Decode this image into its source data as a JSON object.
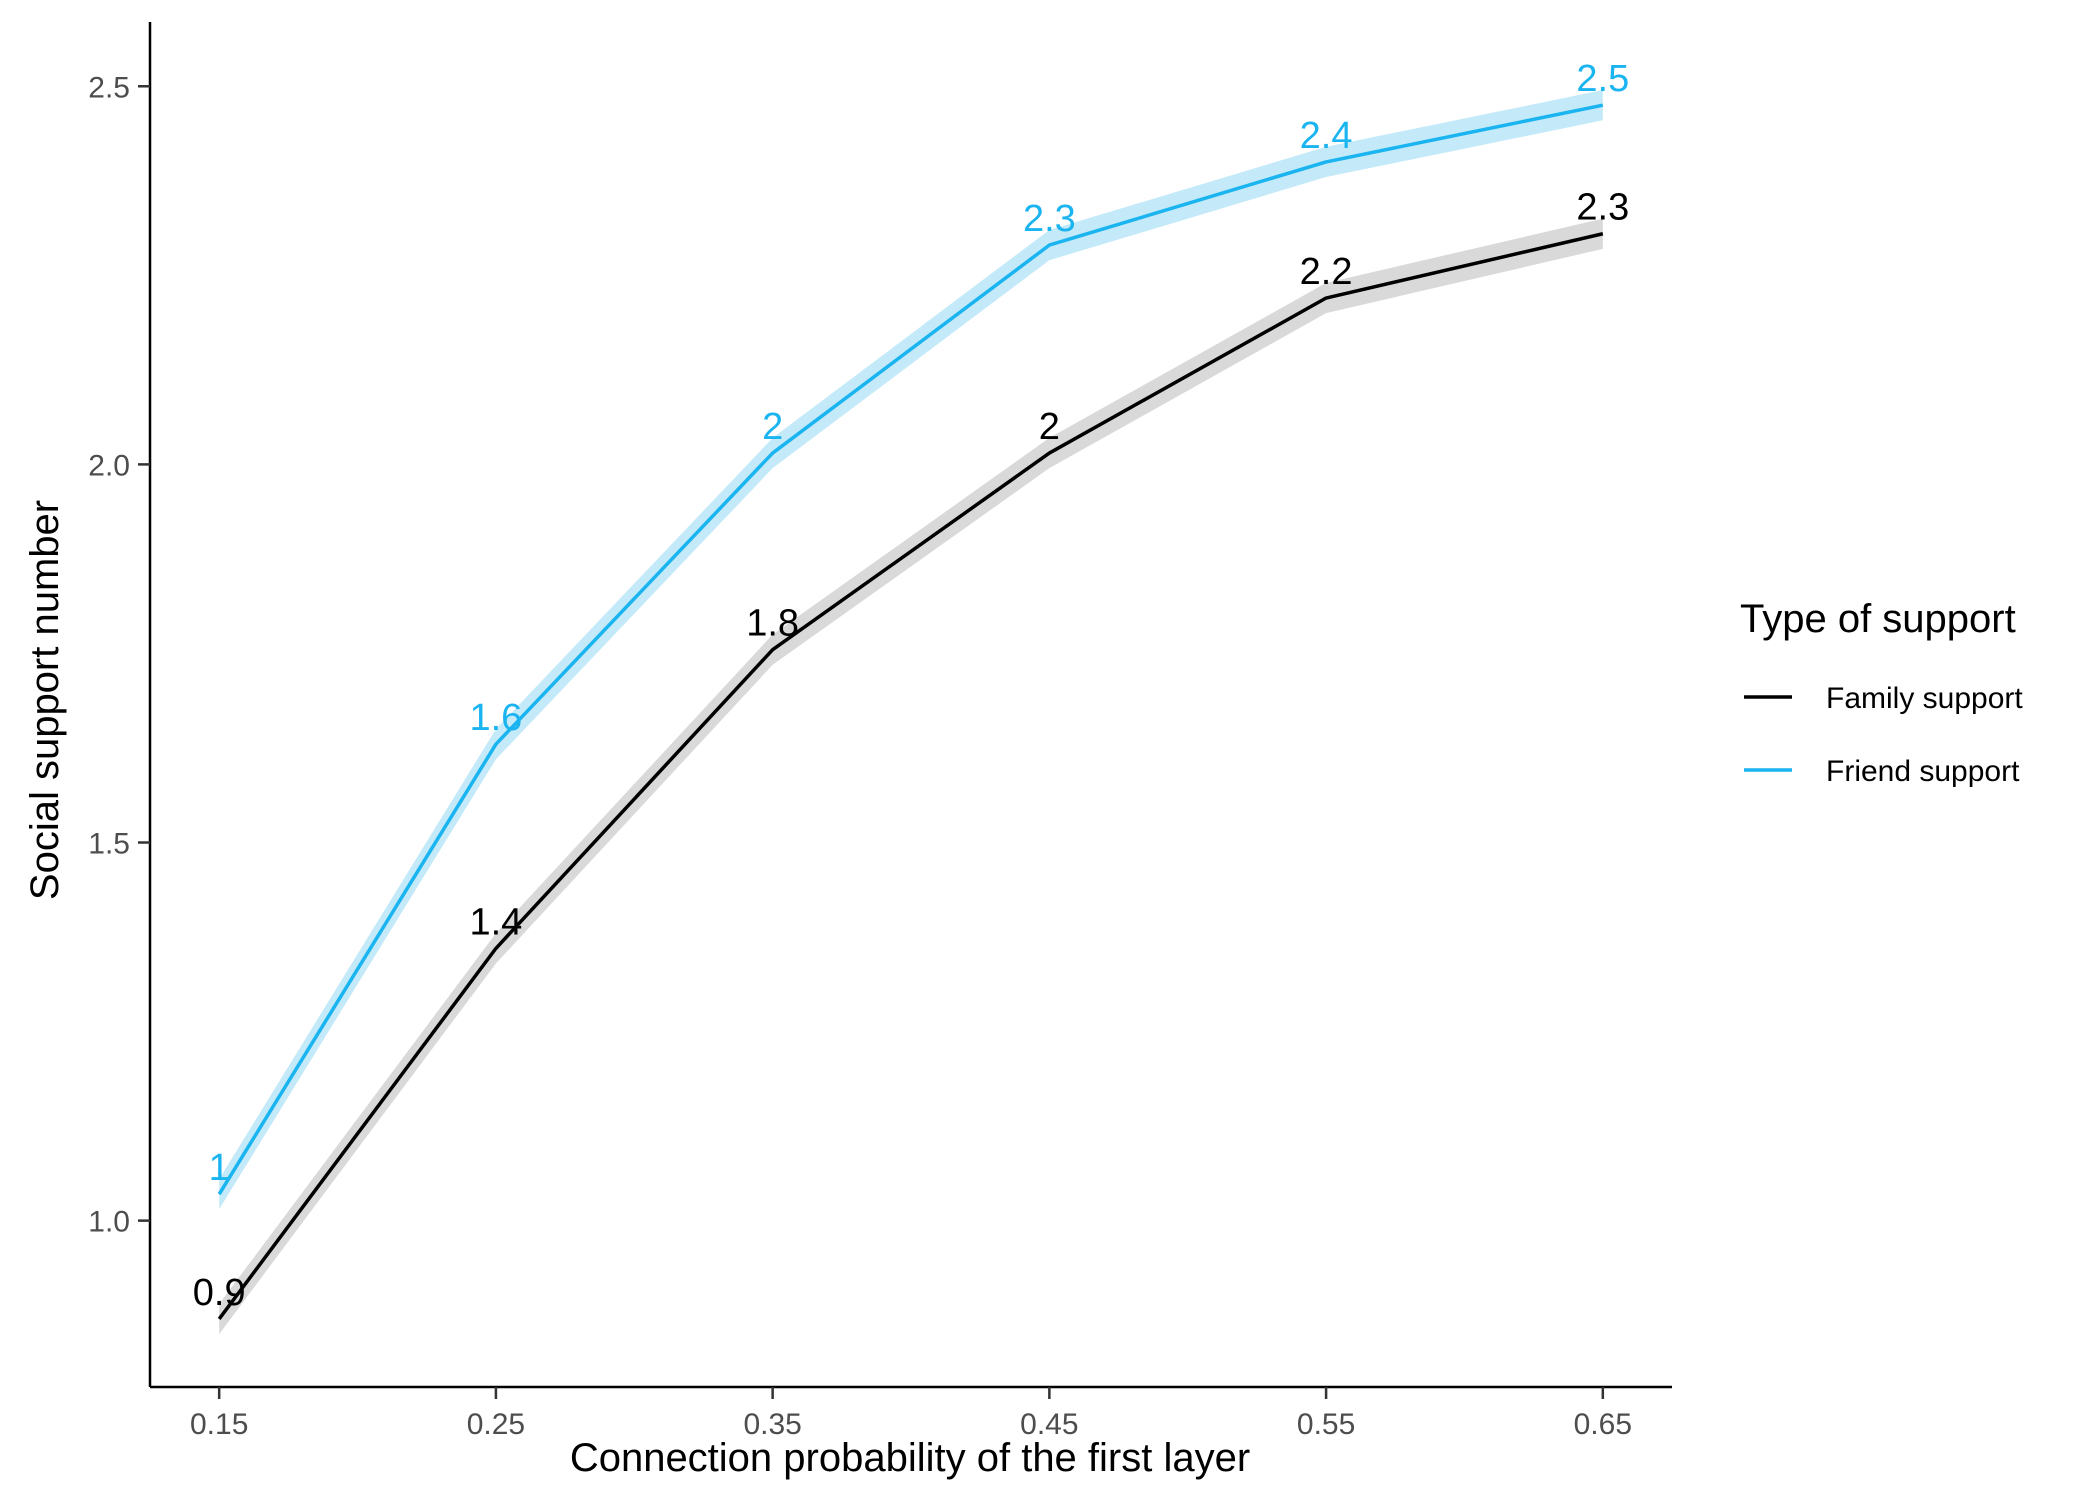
{
  "chart_data": {
    "type": "line",
    "xlabel": "Connection probability of the first layer",
    "ylabel": "Social support number",
    "x": [
      0.15,
      0.25,
      0.35,
      0.45,
      0.55,
      0.65
    ],
    "x_tick_labels": [
      "0.15",
      "0.25",
      "0.35",
      "0.45",
      "0.55",
      "0.65"
    ],
    "y_ticks": [
      1.0,
      1.5,
      2.0,
      2.5
    ],
    "y_tick_labels": [
      "1.0",
      "1.5",
      "2.0",
      "2.5"
    ],
    "xlim": [
      0.125,
      0.675
    ],
    "ylim": [
      0.78,
      2.585
    ],
    "grid": false,
    "legend": {
      "title": "Type of support",
      "placement": "right"
    },
    "series": [
      {
        "name": "Family support",
        "color": "#000000",
        "band_color": "#d9d9d9",
        "values": [
          0.87,
          1.36,
          1.755,
          2.015,
          2.22,
          2.305
        ],
        "ci_low": [
          0.85,
          1.34,
          1.735,
          1.995,
          2.2,
          2.285
        ],
        "ci_high": [
          0.89,
          1.38,
          1.775,
          2.035,
          2.24,
          2.325
        ],
        "data_labels": [
          "0.9",
          "1.4",
          "1.8",
          "2",
          "2.2",
          "2.3"
        ]
      },
      {
        "name": "Friend support",
        "color": "#1ab4f0",
        "band_color": "#c4eaf9",
        "values": [
          1.035,
          1.63,
          2.015,
          2.29,
          2.4,
          2.475
        ],
        "ci_low": [
          1.015,
          1.61,
          1.995,
          2.27,
          2.38,
          2.455
        ],
        "ci_high": [
          1.055,
          1.65,
          2.035,
          2.31,
          2.42,
          2.495
        ],
        "data_labels": [
          "1",
          "1.6",
          "2",
          "2.3",
          "2.4",
          "2.5"
        ]
      }
    ]
  }
}
